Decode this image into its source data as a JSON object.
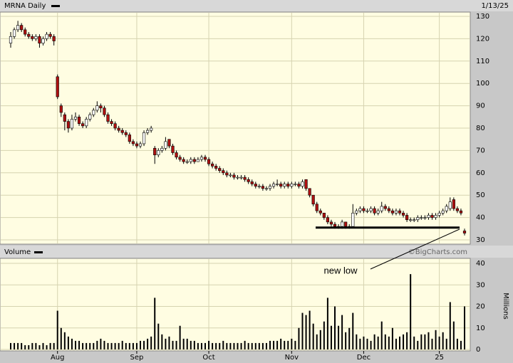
{
  "chart_data": [
    {
      "type": "candlestick",
      "title": "MRNA Daily",
      "date": "1/13/25",
      "open": [
        118,
        121,
        124,
        126,
        124,
        122,
        121,
        120,
        121,
        118,
        120,
        122,
        121,
        103,
        90,
        86,
        83,
        80,
        84,
        85,
        82,
        81,
        84,
        86,
        88,
        90,
        89,
        86,
        83,
        82,
        80,
        79,
        78,
        77,
        74,
        73,
        72,
        73,
        78,
        79,
        71,
        68,
        70,
        71,
        75,
        72,
        69,
        67,
        66,
        65,
        65,
        66,
        65,
        66,
        67,
        66,
        64,
        63,
        62,
        61,
        60,
        59,
        59,
        58,
        58,
        58,
        57,
        56,
        55,
        54,
        54,
        53,
        53,
        54,
        55,
        55,
        54,
        55,
        54,
        55,
        55,
        54,
        57,
        53,
        50,
        46,
        43,
        42,
        40,
        38,
        37,
        36,
        36,
        38,
        36,
        36,
        42,
        43,
        44,
        43,
        43,
        44,
        42,
        43,
        45,
        44,
        43,
        42,
        43,
        42,
        41,
        39,
        39,
        39,
        40,
        40,
        40,
        41,
        40,
        41,
        42,
        43,
        44,
        48,
        44,
        43,
        34
      ],
      "high": [
        123,
        125,
        128,
        127,
        125,
        123,
        122,
        122,
        122,
        121,
        123,
        123,
        122,
        104,
        91,
        87,
        84,
        86,
        87,
        86,
        83,
        85,
        87,
        89,
        92,
        91,
        90,
        87,
        84,
        83,
        81,
        80,
        79,
        78,
        75,
        74,
        74,
        79,
        80,
        81,
        72,
        71,
        72,
        76,
        75,
        73,
        70,
        68,
        67,
        66,
        67,
        67,
        67,
        68,
        68,
        67,
        65,
        64,
        63,
        62,
        61,
        60,
        60,
        59,
        59,
        59,
        58,
        57,
        56,
        55,
        55,
        54,
        55,
        56,
        57,
        56,
        56,
        56,
        56,
        56,
        56,
        57,
        57,
        53,
        50,
        47,
        44,
        42,
        41,
        39,
        38,
        37,
        39,
        38,
        37,
        46,
        44,
        45,
        45,
        44,
        45,
        45,
        44,
        47,
        46,
        45,
        44,
        44,
        44,
        43,
        42,
        40,
        40,
        41,
        41,
        41,
        42,
        42,
        42,
        43,
        44,
        46,
        49,
        49,
        45,
        44,
        35
      ],
      "low": [
        116,
        120,
        123,
        123,
        121,
        120,
        119,
        119,
        116,
        117,
        119,
        120,
        117,
        93,
        85,
        79,
        78,
        79,
        83,
        81,
        80,
        80,
        83,
        85,
        87,
        87,
        85,
        82,
        81,
        79,
        78,
        77,
        76,
        73,
        72,
        71,
        71,
        72,
        77,
        78,
        64,
        67,
        69,
        70,
        71,
        68,
        66,
        65,
        64,
        64,
        64,
        64,
        65,
        65,
        65,
        63,
        62,
        61,
        60,
        59,
        58,
        58,
        57,
        57,
        57,
        56,
        55,
        54,
        53,
        53,
        52,
        52,
        52,
        53,
        54,
        53,
        53,
        53,
        53,
        54,
        53,
        53,
        52,
        49,
        45,
        42,
        41,
        39,
        37,
        36,
        35,
        35,
        35,
        35,
        35,
        36,
        41,
        42,
        42,
        42,
        42,
        41,
        41,
        42,
        43,
        42,
        41,
        41,
        41,
        40,
        38,
        38,
        38,
        38,
        39,
        39,
        39,
        39,
        39,
        40,
        41,
        42,
        43,
        43,
        42,
        41,
        32
      ],
      "close": [
        121,
        124,
        126,
        124,
        122,
        121,
        120,
        121,
        118,
        120,
        122,
        121,
        119,
        94,
        87,
        83,
        80,
        84,
        85,
        82,
        81,
        84,
        86,
        88,
        90,
        89,
        86,
        83,
        82,
        80,
        79,
        78,
        77,
        74,
        73,
        72,
        73,
        78,
        79,
        80,
        68,
        70,
        71,
        74,
        72,
        69,
        67,
        66,
        65,
        65,
        66,
        65,
        66,
        67,
        66,
        64,
        63,
        62,
        61,
        60,
        59,
        59,
        58,
        58,
        58,
        57,
        56,
        55,
        54,
        54,
        53,
        53,
        54,
        55,
        55,
        54,
        55,
        54,
        55,
        55,
        54,
        56,
        53,
        50,
        46,
        43,
        42,
        40,
        38,
        37,
        36,
        36,
        38,
        36,
        36,
        42,
        43,
        44,
        43,
        43,
        44,
        42,
        43,
        45,
        44,
        43,
        42,
        43,
        42,
        41,
        39,
        39,
        39,
        40,
        40,
        40,
        41,
        40,
        41,
        42,
        43,
        45,
        47,
        44,
        43,
        42,
        33
      ],
      "up_color": "#ffffff",
      "down_color": "#b01010",
      "ylim": [
        30,
        130
      ],
      "yticks": [
        30,
        40,
        50,
        60,
        70,
        80,
        90,
        100,
        110,
        120,
        130
      ],
      "grid": true,
      "support_level": 35.5,
      "annotation": "new low",
      "watermark": "©BigCharts.com"
    },
    {
      "type": "bar",
      "title": "Volume",
      "y_label": "Millions",
      "color": "#000000",
      "categories": [
        null,
        null,
        null,
        null,
        null,
        null,
        null,
        null,
        null,
        null,
        null,
        null,
        null,
        "Aug",
        null,
        null,
        null,
        null,
        null,
        null,
        null,
        null,
        null,
        null,
        null,
        null,
        null,
        null,
        null,
        null,
        null,
        null,
        null,
        null,
        null,
        "Sep",
        null,
        null,
        null,
        null,
        null,
        null,
        null,
        null,
        null,
        null,
        null,
        null,
        null,
        null,
        null,
        null,
        null,
        null,
        null,
        "Oct",
        null,
        null,
        null,
        null,
        null,
        null,
        null,
        null,
        null,
        null,
        null,
        null,
        null,
        null,
        null,
        null,
        null,
        null,
        null,
        null,
        null,
        null,
        "Nov",
        null,
        null,
        null,
        null,
        null,
        null,
        null,
        null,
        null,
        null,
        null,
        null,
        null,
        null,
        null,
        null,
        null,
        null,
        null,
        "Dec",
        null,
        null,
        null,
        null,
        null,
        null,
        null,
        null,
        null,
        null,
        null,
        null,
        null,
        null,
        null,
        null,
        null,
        null,
        null,
        null,
        "25",
        null,
        null,
        null,
        null,
        null,
        null,
        null
      ],
      "values": [
        3,
        3,
        3,
        3,
        2,
        2,
        3,
        3,
        2,
        3,
        2,
        3,
        3,
        18,
        10,
        8,
        6,
        5,
        4,
        4,
        3,
        3,
        3,
        3,
        4,
        5,
        4,
        3,
        3,
        3,
        3,
        4,
        3,
        3,
        3,
        3,
        4,
        4,
        5,
        6,
        24,
        12,
        7,
        5,
        6,
        4,
        4,
        11,
        5,
        5,
        4,
        4,
        3,
        3,
        3,
        4,
        3,
        3,
        3,
        4,
        3,
        3,
        3,
        3,
        3,
        4,
        3,
        3,
        3,
        3,
        3,
        3,
        4,
        4,
        4,
        5,
        4,
        4,
        5,
        4,
        10,
        17,
        16,
        18,
        12,
        7,
        9,
        13,
        24,
        11,
        20,
        11,
        16,
        8,
        10,
        17,
        7,
        5,
        6,
        5,
        4,
        7,
        6,
        13,
        7,
        6,
        10,
        5,
        6,
        7,
        8,
        35,
        6,
        4,
        7,
        7,
        8,
        5,
        9,
        6,
        8,
        5,
        22,
        13,
        5,
        4,
        20
      ],
      "ylim": [
        0,
        40
      ],
      "yticks": [
        0,
        10,
        20,
        30,
        40
      ],
      "grid": true
    }
  ]
}
